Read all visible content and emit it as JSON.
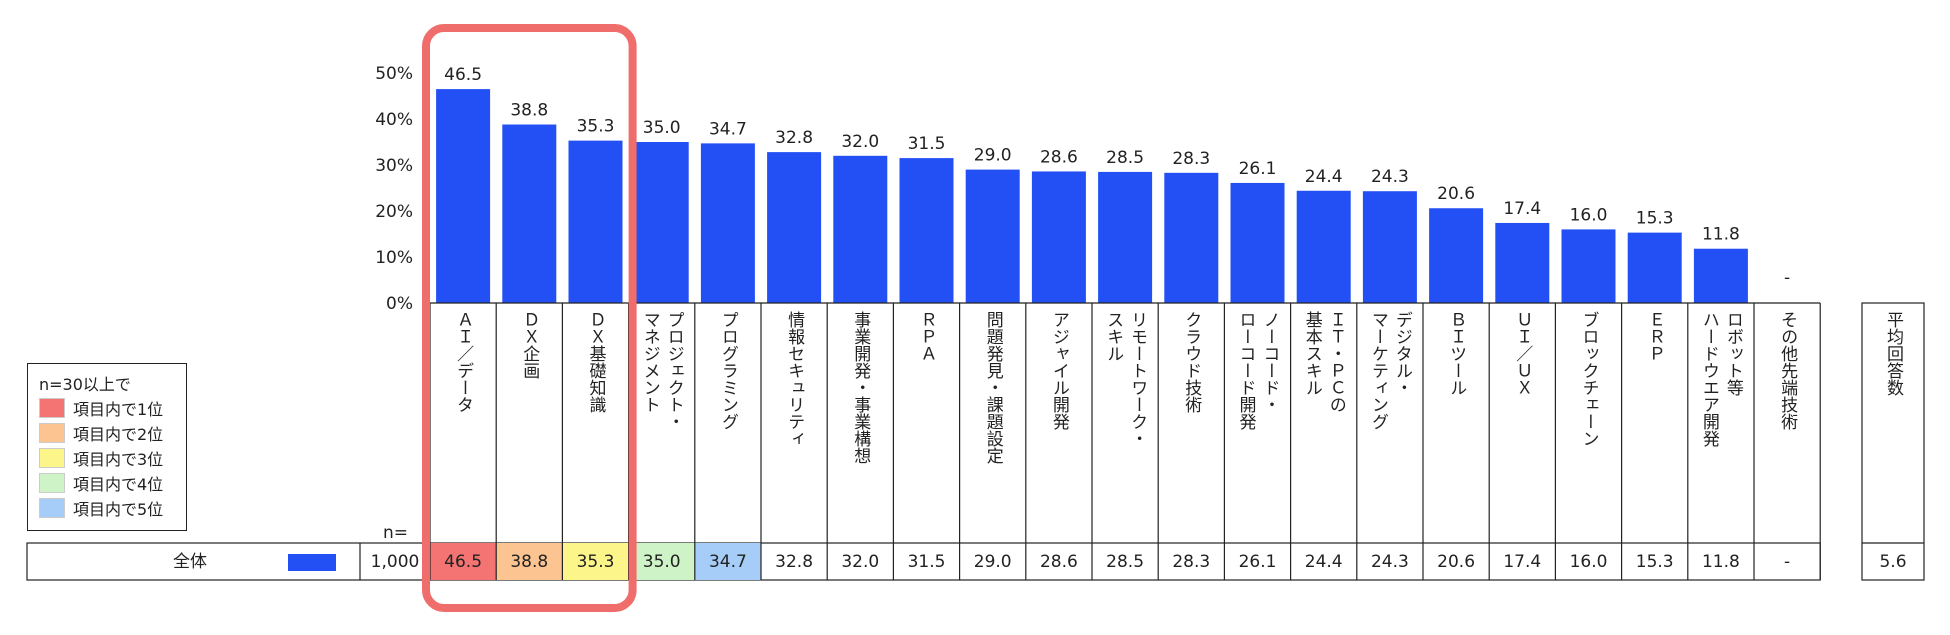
{
  "chart_data": {
    "type": "bar",
    "y_ticks": [
      "50%",
      "40%",
      "30%",
      "20%",
      "10%",
      "0%"
    ],
    "ylim": [
      0,
      50
    ],
    "categories": [
      {
        "label_lines": [
          "ＡＩ／データ"
        ]
      },
      {
        "label_lines": [
          "ＤＸ企画"
        ]
      },
      {
        "label_lines": [
          "ＤＸ基礎知識"
        ]
      },
      {
        "label_lines": [
          "プロジェクト・",
          "マネジメント"
        ]
      },
      {
        "label_lines": [
          "プログラミング"
        ]
      },
      {
        "label_lines": [
          "情報セキュリティ"
        ]
      },
      {
        "label_lines": [
          "事業開発・事業構想"
        ]
      },
      {
        "label_lines": [
          "ＲＰＡ"
        ]
      },
      {
        "label_lines": [
          "問題発見・課題設定"
        ]
      },
      {
        "label_lines": [
          "アジャイル開発"
        ]
      },
      {
        "label_lines": [
          "リモートワーク・",
          "スキル"
        ]
      },
      {
        "label_lines": [
          "クラウド技術"
        ]
      },
      {
        "label_lines": [
          "ノーコード・",
          "ローコード開発"
        ]
      },
      {
        "label_lines": [
          "ＩＴ・ＰＣの",
          "基本スキル"
        ]
      },
      {
        "label_lines": [
          "デジタル・",
          "マーケティング"
        ]
      },
      {
        "label_lines": [
          "ＢＩツール"
        ]
      },
      {
        "label_lines": [
          "ＵＩ／ＵＸ"
        ]
      },
      {
        "label_lines": [
          "ブロックチェーン"
        ]
      },
      {
        "label_lines": [
          "ＥＲＰ"
        ]
      },
      {
        "label_lines": [
          "ロボット等",
          "ハードウエア開発"
        ]
      },
      {
        "label_lines": [
          "その他先端技術"
        ]
      }
    ],
    "series": [
      {
        "name": "全体",
        "values": [
          46.5,
          38.8,
          35.3,
          35.0,
          34.7,
          32.8,
          32.0,
          31.5,
          29.0,
          28.6,
          28.5,
          28.3,
          26.1,
          24.4,
          24.3,
          20.6,
          17.4,
          16.0,
          15.3,
          11.8,
          null
        ],
        "display": [
          "46.5",
          "38.8",
          "35.3",
          "35.0",
          "34.7",
          "32.8",
          "32.0",
          "31.5",
          "29.0",
          "28.6",
          "28.5",
          "28.3",
          "26.1",
          "24.4",
          "24.3",
          "20.6",
          "17.4",
          "16.0",
          "15.3",
          "11.8",
          "-"
        ]
      }
    ],
    "rank_fills": [
      "#f47373",
      "#fbc490",
      "#fbf58a",
      "#cdf3c7",
      "#a5cdf8",
      null,
      null,
      null,
      null,
      null,
      null,
      null,
      null,
      null,
      null,
      null,
      null,
      null,
      null,
      null,
      null
    ],
    "n_header": "n=",
    "n_value": "1,000",
    "row_label": "全体",
    "avg_header_lines": [
      "平均回答数"
    ],
    "avg_value": "5.6",
    "bar_color": "#2350f5",
    "highlight_color": "#ef6e6b"
  },
  "legend": {
    "title": "n=30以上で",
    "items": [
      {
        "label": "項目内で1位",
        "color": "#f47373"
      },
      {
        "label": "項目内で2位",
        "color": "#fbc490"
      },
      {
        "label": "項目内で3位",
        "color": "#fbf58a"
      },
      {
        "label": "項目内で4位",
        "color": "#cdf3c7"
      },
      {
        "label": "項目内で5位",
        "color": "#a5cdf8"
      }
    ]
  }
}
